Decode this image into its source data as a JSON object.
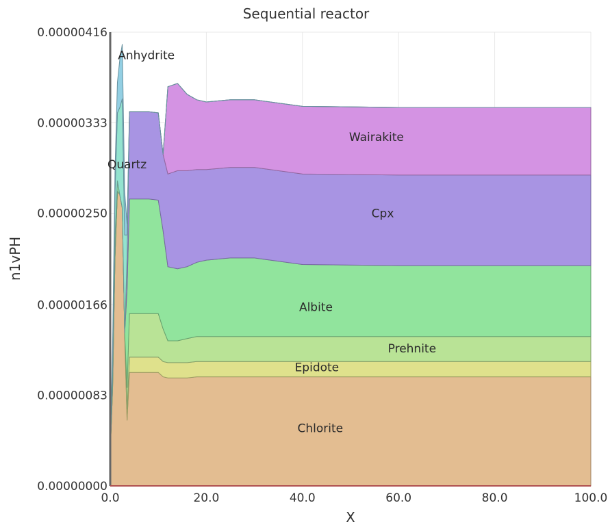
{
  "chart_data": {
    "type": "area",
    "title": "Sequential reactor",
    "xlabel": "X",
    "ylabel": "n1vPH",
    "xlim": [
      0,
      100
    ],
    "ylim": [
      0,
      4.16e-06
    ],
    "x_ticks": [
      "0.0",
      "20.0",
      "40.0",
      "60.0",
      "80.0",
      "100.0"
    ],
    "y_ticks": [
      "0.00000000",
      "0.00000083",
      "0.00000166",
      "0.00000250",
      "0.00000333",
      "0.00000416"
    ],
    "grid": true,
    "stacked": true,
    "x": [
      0,
      0.5,
      1,
      1.5,
      2,
      2.5,
      3,
      3.5,
      4,
      6,
      8,
      10,
      11,
      12,
      14,
      16,
      18,
      20,
      25,
      30,
      40,
      60,
      80,
      100
    ],
    "series": [
      {
        "name": "Chlorite",
        "color": "#e3bd91",
        "label_at": [
          43.7,
          5.3e-07
        ],
        "values": [
          3e-07,
          9e-07,
          2.1e-06,
          2.7e-06,
          2.67e-06,
          2.55e-06,
          1.4e-06,
          6e-07,
          1.04e-06,
          1.04e-06,
          1.04e-06,
          1.04e-06,
          1e-06,
          9.9e-07,
          9.9e-07,
          9.9e-07,
          1e-06,
          1e-06,
          1e-06,
          1e-06,
          1e-06,
          1e-06,
          1e-06,
          1e-06
        ]
      },
      {
        "name": "Epidote",
        "color": "#dfe18c",
        "label_at": [
          43,
          1.09e-06
        ],
        "values": [
          0,
          0,
          0,
          0,
          0,
          0,
          0,
          1e-07,
          1.4e-07,
          1.4e-07,
          1.4e-07,
          1.4e-07,
          1.4e-07,
          1.4e-07,
          1.4e-07,
          1.4e-07,
          1.4e-07,
          1.4e-07,
          1.4e-07,
          1.4e-07,
          1.4e-07,
          1.4e-07,
          1.4e-07,
          1.4e-07
        ]
      },
      {
        "name": "Prehnite",
        "color": "#b9e396",
        "label_at": [
          62.8,
          1.26e-06
        ],
        "values": [
          0,
          0,
          0,
          0,
          0,
          0,
          0,
          2e-07,
          4e-07,
          4e-07,
          4e-07,
          4e-07,
          3e-07,
          2e-07,
          2e-07,
          2.2e-07,
          2.3e-07,
          2.3e-07,
          2.3e-07,
          2.3e-07,
          2.3e-07,
          2.3e-07,
          2.3e-07,
          2.3e-07
        ]
      },
      {
        "name": "Albite",
        "color": "#91e49d",
        "label_at": [
          42.8,
          1.64e-06
        ],
        "values": [
          0,
          1e-07,
          2e-07,
          1e-07,
          0,
          0,
          0,
          9e-07,
          1.05e-06,
          1.05e-06,
          1.05e-06,
          1.04e-06,
          9e-07,
          6.8e-07,
          6.6e-07,
          6.6e-07,
          6.8e-07,
          7e-07,
          7.2e-07,
          7.2e-07,
          6.6e-07,
          6.5e-07,
          6.5e-07,
          6.5e-07
        ]
      },
      {
        "name": "Cpx",
        "color": "#a894e3",
        "label_at": [
          56.7,
          2.5e-06
        ],
        "values": [
          0,
          0,
          0,
          0,
          0,
          0,
          0,
          3e-07,
          8e-07,
          8e-07,
          8e-07,
          8e-07,
          7e-07,
          8.5e-07,
          9e-07,
          8.8e-07,
          8.5e-07,
          8.3e-07,
          8.3e-07,
          8.3e-07,
          8.3e-07,
          8.3e-07,
          8.3e-07,
          8.3e-07
        ]
      },
      {
        "name": "Wairakite",
        "color": "#d493e3",
        "label_at": [
          55.4,
          3.2e-06
        ],
        "values": [
          0,
          0,
          0,
          0,
          0,
          0,
          0,
          0,
          0,
          0,
          0,
          0,
          0,
          8e-07,
          8e-07,
          7e-07,
          6.4e-07,
          6.2e-07,
          6.2e-07,
          6.2e-07,
          6.2e-07,
          6.2e-07,
          6.2e-07,
          6.2e-07
        ]
      },
      {
        "name": "Quartz",
        "color": "#93e3cf",
        "label_at": [
          3.5,
          2.95e-06
        ],
        "values": [
          0,
          2e-07,
          4e-07,
          6.2e-07,
          8e-07,
          1e-06,
          9e-07,
          2e-07,
          0,
          0,
          0,
          0,
          0,
          0,
          0,
          0,
          0,
          0,
          0,
          0,
          0,
          0,
          0,
          0
        ]
      },
      {
        "name": "Anhydrite",
        "color": "#93cfe3",
        "label_at": [
          7.5,
          3.95e-06
        ],
        "values": [
          0,
          1e-07,
          2e-07,
          2.8e-07,
          4.4e-07,
          5e-07,
          4e-07,
          1e-07,
          0,
          0,
          0,
          0,
          0,
          0,
          0,
          0,
          0,
          0,
          0,
          0,
          0,
          0,
          0,
          0
        ]
      }
    ]
  }
}
